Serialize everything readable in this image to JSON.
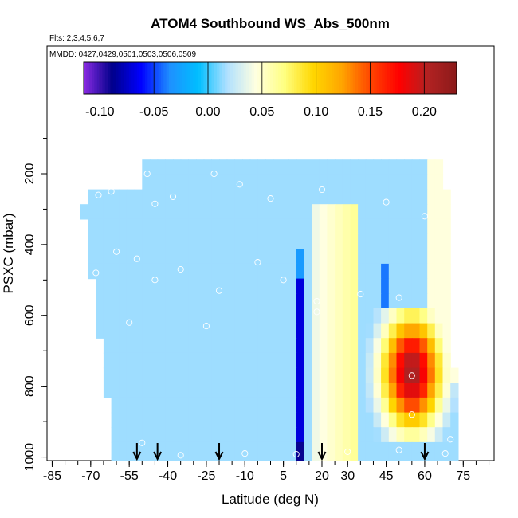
{
  "chart_data": {
    "type": "heatmap",
    "title": "ATOM4 Southbound WS_Abs_500nm",
    "annotations": [
      "Flts: 2,3,4,5,6,7",
      "MMDD: 0427,0429,0501,0503,0506,0509"
    ],
    "xlabel": "Latitude (deg N)",
    "ylabel": "PSXC (mbar)",
    "xlim": [
      -87,
      87
    ],
    "ylim": [
      1010,
      -160
    ],
    "xticks": [
      -85,
      -70,
      -55,
      -40,
      -25,
      -10,
      5,
      20,
      30,
      45,
      60,
      75
    ],
    "xtick_labels": [
      "-85",
      "-70",
      "-55",
      "-40",
      "-25",
      "-10",
      "5",
      "20",
      "30",
      "45",
      "60",
      "75"
    ],
    "yticks": [
      200,
      400,
      600,
      800,
      1000
    ],
    "ytick_labels": [
      "200",
      "400",
      "600",
      "800",
      "1000"
    ],
    "colorbar": {
      "range": [
        -0.115,
        0.23
      ],
      "ticks": [
        -0.1,
        -0.05,
        0.0,
        0.05,
        0.1,
        0.15,
        0.2
      ],
      "tick_labels": [
        "-0.10",
        "-0.05",
        "0.00",
        "0.05",
        "0.10",
        "0.15",
        "0.20"
      ],
      "colors": [
        "#8a2be2",
        "#00008b",
        "#0000ff",
        "#1e90ff",
        "#00bfff",
        "#b0e0ff",
        "#ffffe0",
        "#ffff80",
        "#ffd700",
        "#ffa500",
        "#ff4500",
        "#ff0000",
        "#b22222",
        "#8b1a1a"
      ]
    },
    "flight_arrows_lat": [
      -52,
      -44,
      -20,
      20,
      60
    ],
    "background_value": 0.015,
    "features": [
      {
        "lat": [
          32,
          72
        ],
        "p": [
          580,
          920
        ],
        "peak": 0.21,
        "center_lat": 55,
        "center_p": 760
      },
      {
        "lat": [
          10,
          14
        ],
        "p": [
          420,
          1010
        ],
        "value": -0.07
      },
      {
        "lat": [
          13,
          25
        ],
        "p": [
          230,
          1010
        ],
        "value": 0.04
      },
      {
        "lat": [
          60,
          70
        ],
        "p": [
          160,
          900
        ],
        "value": 0.05
      }
    ],
    "altitude_sample_points": [
      {
        "lat": -70,
        "p": 230
      },
      {
        "lat": -67,
        "p": 260
      },
      {
        "lat": -62,
        "p": 250
      },
      {
        "lat": -58,
        "p": 210
      },
      {
        "lat": -48,
        "p": 200
      },
      {
        "lat": -45,
        "p": 285
      },
      {
        "lat": -38,
        "p": 265
      },
      {
        "lat": -22,
        "p": 200
      },
      {
        "lat": -12,
        "p": 230
      },
      {
        "lat": 0,
        "p": 270
      },
      {
        "lat": 20,
        "p": 245
      },
      {
        "lat": 45,
        "p": 280
      },
      {
        "lat": 60,
        "p": 320
      },
      {
        "lat": -68,
        "p": 480
      },
      {
        "lat": -60,
        "p": 420
      },
      {
        "lat": -52,
        "p": 440
      },
      {
        "lat": -45,
        "p": 500
      },
      {
        "lat": -35,
        "p": 470
      },
      {
        "lat": -20,
        "p": 530
      },
      {
        "lat": -5,
        "p": 450
      },
      {
        "lat": 5,
        "p": 500
      },
      {
        "lat": 18,
        "p": 560
      },
      {
        "lat": 35,
        "p": 540
      },
      {
        "lat": 50,
        "p": 550
      },
      {
        "lat": -55,
        "p": 620
      },
      {
        "lat": -25,
        "p": 630
      },
      {
        "lat": 18,
        "p": 590
      },
      {
        "lat": 55,
        "p": 770
      },
      {
        "lat": 55,
        "p": 880
      },
      {
        "lat": 70,
        "p": 950
      },
      {
        "lat": -65,
        "p": 960
      },
      {
        "lat": -50,
        "p": 960
      },
      {
        "lat": -35,
        "p": 995
      },
      {
        "lat": -10,
        "p": 990
      },
      {
        "lat": 10,
        "p": 992
      },
      {
        "lat": 30,
        "p": 985
      },
      {
        "lat": 50,
        "p": 980
      },
      {
        "lat": 68,
        "p": 990
      }
    ]
  }
}
